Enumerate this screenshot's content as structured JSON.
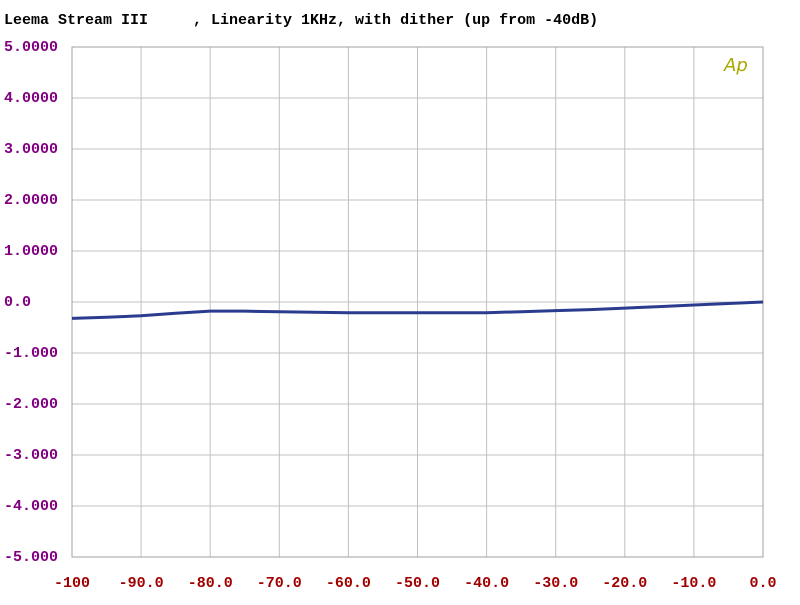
{
  "chart_data": {
    "type": "line",
    "title": "Leema Stream III     , Linearity 1KHz, with dither (up from -40dB)",
    "annotation": "Ap",
    "x": [
      -100,
      -95,
      -90,
      -85,
      -80,
      -75,
      -70,
      -65,
      -60,
      -50,
      -40,
      -35,
      -30,
      -25,
      -20,
      -15,
      -10,
      -5,
      0
    ],
    "values": [
      -0.32,
      -0.3,
      -0.27,
      -0.22,
      -0.18,
      -0.18,
      -0.19,
      -0.2,
      -0.21,
      -0.21,
      -0.21,
      -0.19,
      -0.17,
      -0.15,
      -0.12,
      -0.09,
      -0.06,
      -0.03,
      0
    ],
    "color": "#2b3c8e",
    "xlim": [
      -100,
      0
    ],
    "ylim": [
      -5,
      5
    ],
    "xticks": [
      -100,
      {
        "value": -90,
        "label": "-90.0"
      },
      {
        "value": -80,
        "label": "-80.0"
      },
      {
        "value": -70,
        "label": "-70.0"
      },
      {
        "value": -60,
        "label": "-60.0"
      },
      {
        "value": -50,
        "label": "-50.0"
      },
      {
        "value": -40,
        "label": "-40.0"
      },
      {
        "value": -30,
        "label": "-30.0"
      },
      {
        "value": -20,
        "label": "-20.0"
      },
      {
        "value": -10,
        "label": "-10.0"
      },
      {
        "value": 0,
        "label": "0.0"
      }
    ],
    "yticks": [
      {
        "value": 5,
        "label": "5.0000"
      },
      {
        "value": 4,
        "label": "4.0000"
      },
      {
        "value": 3,
        "label": "3.0000"
      },
      {
        "value": 2,
        "label": "2.0000"
      },
      {
        "value": 1,
        "label": "1.0000"
      },
      {
        "value": 0,
        "label": "0.0"
      },
      {
        "value": -1,
        "label": "-1.000"
      },
      {
        "value": -2,
        "label": "-2.000"
      },
      {
        "value": -3,
        "label": "-3.000"
      },
      {
        "value": -4,
        "label": "-4.000"
      },
      {
        "value": -5,
        "label": "-5.000"
      }
    ],
    "grid": true
  }
}
